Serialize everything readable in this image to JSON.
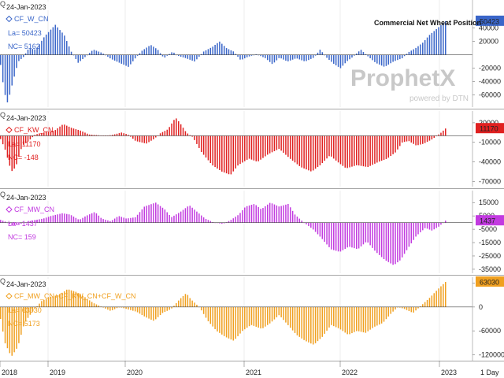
{
  "chart_data": {
    "type": "bar",
    "title": "Commercial Net Wheat Position",
    "x_labels": [
      "2018",
      "2019",
      "2020",
      "2021",
      "2022",
      "2023"
    ],
    "period_label": "1 Day",
    "watermark": {
      "brand": "ProphetX",
      "tagline": "powered by DTN"
    },
    "panels": [
      {
        "date": "24-Jan-2023",
        "symbol": "CF_W_CN",
        "last": "La= 50423",
        "net_change": "NC= 5162",
        "last_value": 50423,
        "last_label": "50423",
        "color": "#3a66c9",
        "ylim": [
          -78000,
          82000
        ],
        "yticks": [
          40000,
          20000,
          -20000,
          -40000,
          -60000
        ],
        "keys": [
          [
            2018.0,
            -15000
          ],
          [
            2018.04,
            -55000
          ],
          [
            2018.08,
            -72000
          ],
          [
            2018.14,
            -40000
          ],
          [
            2018.2,
            -10000
          ],
          [
            2018.26,
            -3000
          ],
          [
            2018.32,
            10000
          ],
          [
            2018.4,
            8000
          ],
          [
            2018.5,
            28000
          ],
          [
            2018.62,
            45000
          ],
          [
            2018.72,
            30000
          ],
          [
            2018.8,
            5000
          ],
          [
            2018.88,
            -12000
          ],
          [
            2018.95,
            -4000
          ],
          [
            2019.05,
            8000
          ],
          [
            2019.15,
            3000
          ],
          [
            2019.25,
            -6000
          ],
          [
            2019.35,
            -12000
          ],
          [
            2019.45,
            -18000
          ],
          [
            2019.52,
            -6000
          ],
          [
            2019.6,
            6000
          ],
          [
            2019.7,
            15000
          ],
          [
            2019.78,
            8000
          ],
          [
            2019.85,
            -5000
          ],
          [
            2019.95,
            5000
          ],
          [
            2020.0,
            -1000
          ],
          [
            2020.1,
            -5000
          ],
          [
            2020.2,
            -10000
          ],
          [
            2020.3,
            5000
          ],
          [
            2020.4,
            12000
          ],
          [
            2020.48,
            20000
          ],
          [
            2020.56,
            10000
          ],
          [
            2020.64,
            5000
          ],
          [
            2020.72,
            -8000
          ],
          [
            2020.8,
            -3000
          ],
          [
            2020.9,
            1000
          ],
          [
            2021.0,
            -5000
          ],
          [
            2021.08,
            -14000
          ],
          [
            2021.16,
            -4000
          ],
          [
            2021.25,
            -10000
          ],
          [
            2021.35,
            -5000
          ],
          [
            2021.45,
            -10000
          ],
          [
            2021.55,
            -4000
          ],
          [
            2021.62,
            8000
          ],
          [
            2021.7,
            -5000
          ],
          [
            2021.78,
            -14000
          ],
          [
            2021.85,
            -20000
          ],
          [
            2021.92,
            -10000
          ],
          [
            2022.0,
            -2000
          ],
          [
            2022.08,
            8000
          ],
          [
            2022.16,
            -2000
          ],
          [
            2022.25,
            -12000
          ],
          [
            2022.35,
            -18000
          ],
          [
            2022.45,
            -10000
          ],
          [
            2022.55,
            -5000
          ],
          [
            2022.62,
            4000
          ],
          [
            2022.7,
            10000
          ],
          [
            2022.78,
            18000
          ],
          [
            2022.86,
            30000
          ],
          [
            2022.95,
            40000
          ],
          [
            2023.04,
            50423
          ]
        ]
      },
      {
        "date": "24-Jan-2023",
        "symbol": "CF_KW_CN",
        "last": "La= 11170",
        "net_change": "NC= -148",
        "last_value": 11170,
        "last_label": "11170",
        "color": "#e02020",
        "ylim": [
          -78000,
          38000
        ],
        "yticks": [
          20000,
          -10000,
          -40000,
          -70000
        ],
        "keys": [
          [
            2018.0,
            -5000
          ],
          [
            2018.04,
            -20000
          ],
          [
            2018.1,
            -55000
          ],
          [
            2018.14,
            -48000
          ],
          [
            2018.2,
            -15000
          ],
          [
            2018.26,
            -8000
          ],
          [
            2018.32,
            2000
          ],
          [
            2018.4,
            5000
          ],
          [
            2018.5,
            8000
          ],
          [
            2018.58,
            18000
          ],
          [
            2018.66,
            12000
          ],
          [
            2018.74,
            8000
          ],
          [
            2018.82,
            2000
          ],
          [
            2018.9,
            1000
          ],
          [
            2018.98,
            0
          ],
          [
            2019.05,
            2000
          ],
          [
            2019.12,
            5000
          ],
          [
            2019.18,
            2000
          ],
          [
            2019.25,
            -8000
          ],
          [
            2019.35,
            -12000
          ],
          [
            2019.42,
            -5000
          ],
          [
            2019.48,
            4000
          ],
          [
            2019.55,
            10000
          ],
          [
            2019.62,
            28000
          ],
          [
            2019.66,
            20000
          ],
          [
            2019.72,
            5000
          ],
          [
            2019.78,
            -2000
          ],
          [
            2019.86,
            -25000
          ],
          [
            2019.96,
            -45000
          ],
          [
            2020.05,
            -55000
          ],
          [
            2020.13,
            -60000
          ],
          [
            2020.2,
            -45000
          ],
          [
            2020.3,
            -35000
          ],
          [
            2020.38,
            -40000
          ],
          [
            2020.48,
            -28000
          ],
          [
            2020.58,
            -20000
          ],
          [
            2020.68,
            -35000
          ],
          [
            2020.78,
            -48000
          ],
          [
            2020.88,
            -55000
          ],
          [
            2020.96,
            -45000
          ],
          [
            2021.05,
            -30000
          ],
          [
            2021.12,
            -40000
          ],
          [
            2021.2,
            -50000
          ],
          [
            2021.3,
            -45000
          ],
          [
            2021.4,
            -48000
          ],
          [
            2021.5,
            -40000
          ],
          [
            2021.58,
            -35000
          ],
          [
            2021.66,
            -25000
          ],
          [
            2021.72,
            -10000
          ],
          [
            2021.78,
            -8000
          ],
          [
            2021.85,
            -15000
          ],
          [
            2021.92,
            -12000
          ],
          [
            2022.0,
            -5000
          ],
          [
            2022.08,
            5000
          ],
          [
            2022.12,
            11170
          ]
        ]
      },
      {
        "date": "24-Jan-2023",
        "symbol": "CF_MW_CN",
        "last": "La= 1437",
        "net_change": "NC= 159",
        "last_value": 1437,
        "last_label": "1437",
        "color": "#c23ae0",
        "ylim": [
          -38000,
          24000
        ],
        "yticks": [
          15000,
          5000,
          -5000,
          -15000,
          -25000,
          -35000
        ],
        "keys": [
          [
            2018.0,
            2000
          ],
          [
            2018.05,
            500
          ],
          [
            2018.1,
            -2000
          ],
          [
            2018.18,
            -1000
          ],
          [
            2018.28,
            1500
          ],
          [
            2018.38,
            3000
          ],
          [
            2018.45,
            5000
          ],
          [
            2018.55,
            7000
          ],
          [
            2018.62,
            6000
          ],
          [
            2018.7,
            2000
          ],
          [
            2018.76,
            5000
          ],
          [
            2018.84,
            8000
          ],
          [
            2018.9,
            3000
          ],
          [
            2018.98,
            1000
          ],
          [
            2019.05,
            5000
          ],
          [
            2019.12,
            3000
          ],
          [
            2019.2,
            4000
          ],
          [
            2019.28,
            12000
          ],
          [
            2019.38,
            15000
          ],
          [
            2019.46,
            10000
          ],
          [
            2019.52,
            4000
          ],
          [
            2019.6,
            8000
          ],
          [
            2019.68,
            13000
          ],
          [
            2019.75,
            8000
          ],
          [
            2019.82,
            3000
          ],
          [
            2019.9,
            0
          ],
          [
            2019.98,
            -1000
          ],
          [
            2020.05,
            2000
          ],
          [
            2020.12,
            6000
          ],
          [
            2020.18,
            12000
          ],
          [
            2020.26,
            14000
          ],
          [
            2020.32,
            10000
          ],
          [
            2020.4,
            15000
          ],
          [
            2020.48,
            12000
          ],
          [
            2020.56,
            14000
          ],
          [
            2020.62,
            6000
          ],
          [
            2020.7,
            0
          ],
          [
            2020.78,
            -5000
          ],
          [
            2020.86,
            -12000
          ],
          [
            2020.94,
            -20000
          ],
          [
            2021.02,
            -22000
          ],
          [
            2021.1,
            -18000
          ],
          [
            2021.18,
            -20000
          ],
          [
            2021.26,
            -14000
          ],
          [
            2021.34,
            -22000
          ],
          [
            2021.42,
            -28000
          ],
          [
            2021.5,
            -32000
          ],
          [
            2021.56,
            -28000
          ],
          [
            2021.62,
            -20000
          ],
          [
            2021.7,
            -10000
          ],
          [
            2021.78,
            -4000
          ],
          [
            2021.84,
            -6000
          ],
          [
            2021.9,
            -3000
          ],
          [
            2021.96,
            1437
          ]
        ]
      },
      {
        "date": "24-Jan-2023",
        "symbol": "CF_MW_CN+CF_KW_CN+CF_W_CN",
        "last": "La= 63030",
        "net_change": "NC= 5173",
        "last_value": 63030,
        "last_label": "63030",
        "color": "#f0a020",
        "ylim": [
          -135000,
          75000
        ],
        "yticks": [
          60000,
          0,
          -60000,
          -120000
        ],
        "keys": [
          [
            2018.0,
            -30000
          ],
          [
            2018.04,
            -90000
          ],
          [
            2018.1,
            -125000
          ],
          [
            2018.16,
            -100000
          ],
          [
            2018.22,
            -40000
          ],
          [
            2018.3,
            -10000
          ],
          [
            2018.38,
            15000
          ],
          [
            2018.46,
            25000
          ],
          [
            2018.54,
            30000
          ],
          [
            2018.62,
            45000
          ],
          [
            2018.7,
            38000
          ],
          [
            2018.78,
            25000
          ],
          [
            2018.86,
            10000
          ],
          [
            2018.94,
            0
          ],
          [
            2019.02,
            -10000
          ],
          [
            2019.1,
            0
          ],
          [
            2019.18,
            -6000
          ],
          [
            2019.26,
            -12000
          ],
          [
            2019.34,
            -25000
          ],
          [
            2019.42,
            -35000
          ],
          [
            2019.5,
            -15000
          ],
          [
            2019.58,
            -5000
          ],
          [
            2019.66,
            20000
          ],
          [
            2019.72,
            35000
          ],
          [
            2019.76,
            20000
          ],
          [
            2019.84,
            0
          ],
          [
            2019.92,
            -35000
          ],
          [
            2020.0,
            -60000
          ],
          [
            2020.08,
            -75000
          ],
          [
            2020.16,
            -85000
          ],
          [
            2020.24,
            -60000
          ],
          [
            2020.32,
            -45000
          ],
          [
            2020.42,
            -55000
          ],
          [
            2020.5,
            -40000
          ],
          [
            2020.58,
            -20000
          ],
          [
            2020.66,
            -45000
          ],
          [
            2020.74,
            -70000
          ],
          [
            2020.82,
            -85000
          ],
          [
            2020.9,
            -95000
          ],
          [
            2020.98,
            -75000
          ],
          [
            2021.06,
            -45000
          ],
          [
            2021.14,
            -55000
          ],
          [
            2021.22,
            -70000
          ],
          [
            2021.3,
            -60000
          ],
          [
            2021.38,
            -65000
          ],
          [
            2021.46,
            -50000
          ],
          [
            2021.54,
            -40000
          ],
          [
            2021.62,
            -15000
          ],
          [
            2021.68,
            0
          ],
          [
            2021.74,
            -5000
          ],
          [
            2021.82,
            -15000
          ],
          [
            2021.9,
            5000
          ],
          [
            2021.98,
            25000
          ],
          [
            2022.05,
            45000
          ],
          [
            2022.12,
            63030
          ]
        ]
      }
    ]
  }
}
